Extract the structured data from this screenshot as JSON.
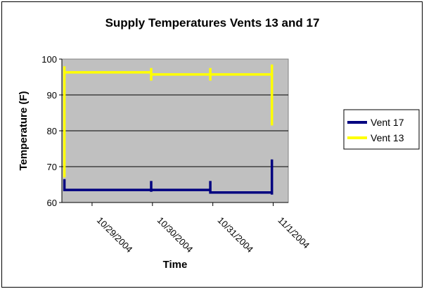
{
  "chart_data": {
    "type": "line",
    "title": "Supply Temperatures Vents 13 and 17",
    "xlabel": "Time",
    "ylabel": "Temperature (F)",
    "ylim": [
      60,
      100
    ],
    "yticks": [
      "60",
      "70",
      "80",
      "90",
      "100"
    ],
    "xlim": [
      "10/28/2004 12:00",
      "11/1/2004 06:00"
    ],
    "x_tick_labels": [
      "10/29/2004",
      "10/30/2004",
      "10/31/2004",
      "11/1/2004"
    ],
    "x_tick_values": [
      "10/29/2004 00:00",
      "10/30/2004 00:00",
      "10/31/2004 00:00",
      "11/1/2004 00:00"
    ],
    "grid": true,
    "legend_position": "right",
    "series": [
      {
        "name": "Vent 17",
        "color": "#000080",
        "points": [
          {
            "x": "10/28/2004 13:00",
            "y": 66.5
          },
          {
            "x": "10/28/2004 13:00",
            "y": 63.5
          },
          {
            "x": "10/29/2004 23:30",
            "y": 63.5
          },
          {
            "x": "10/29/2004 23:30",
            "y": 66
          },
          {
            "x": "10/29/2004 23:30",
            "y": 63
          },
          {
            "x": "10/29/2004 23:30",
            "y": 63.5
          },
          {
            "x": "10/30/2004 23:00",
            "y": 63.5
          },
          {
            "x": "10/30/2004 23:00",
            "y": 66
          },
          {
            "x": "10/30/2004 23:00",
            "y": 62.8
          },
          {
            "x": "10/31/2004 23:30",
            "y": 62.8
          },
          {
            "x": "10/31/2004 23:30",
            "y": 62.2
          },
          {
            "x": "10/31/2004 23:30",
            "y": 72
          }
        ]
      },
      {
        "name": "Vent 13",
        "color": "#ffff00",
        "points": [
          {
            "x": "10/28/2004 13:00",
            "y": 67
          },
          {
            "x": "10/28/2004 13:00",
            "y": 98
          },
          {
            "x": "10/28/2004 13:00",
            "y": 96.3
          },
          {
            "x": "10/29/2004 23:30",
            "y": 96.3
          },
          {
            "x": "10/29/2004 23:30",
            "y": 97.5
          },
          {
            "x": "10/29/2004 23:30",
            "y": 94
          },
          {
            "x": "10/29/2004 23:30",
            "y": 95.7
          },
          {
            "x": "10/30/2004 23:00",
            "y": 95.7
          },
          {
            "x": "10/30/2004 23:00",
            "y": 97.5
          },
          {
            "x": "10/30/2004 23:00",
            "y": 94
          },
          {
            "x": "10/30/2004 23:00",
            "y": 95.7
          },
          {
            "x": "10/31/2004 23:30",
            "y": 95.7
          },
          {
            "x": "10/31/2004 23:30",
            "y": 98.5
          },
          {
            "x": "10/31/2004 23:30",
            "y": 81.5
          }
        ]
      }
    ]
  }
}
